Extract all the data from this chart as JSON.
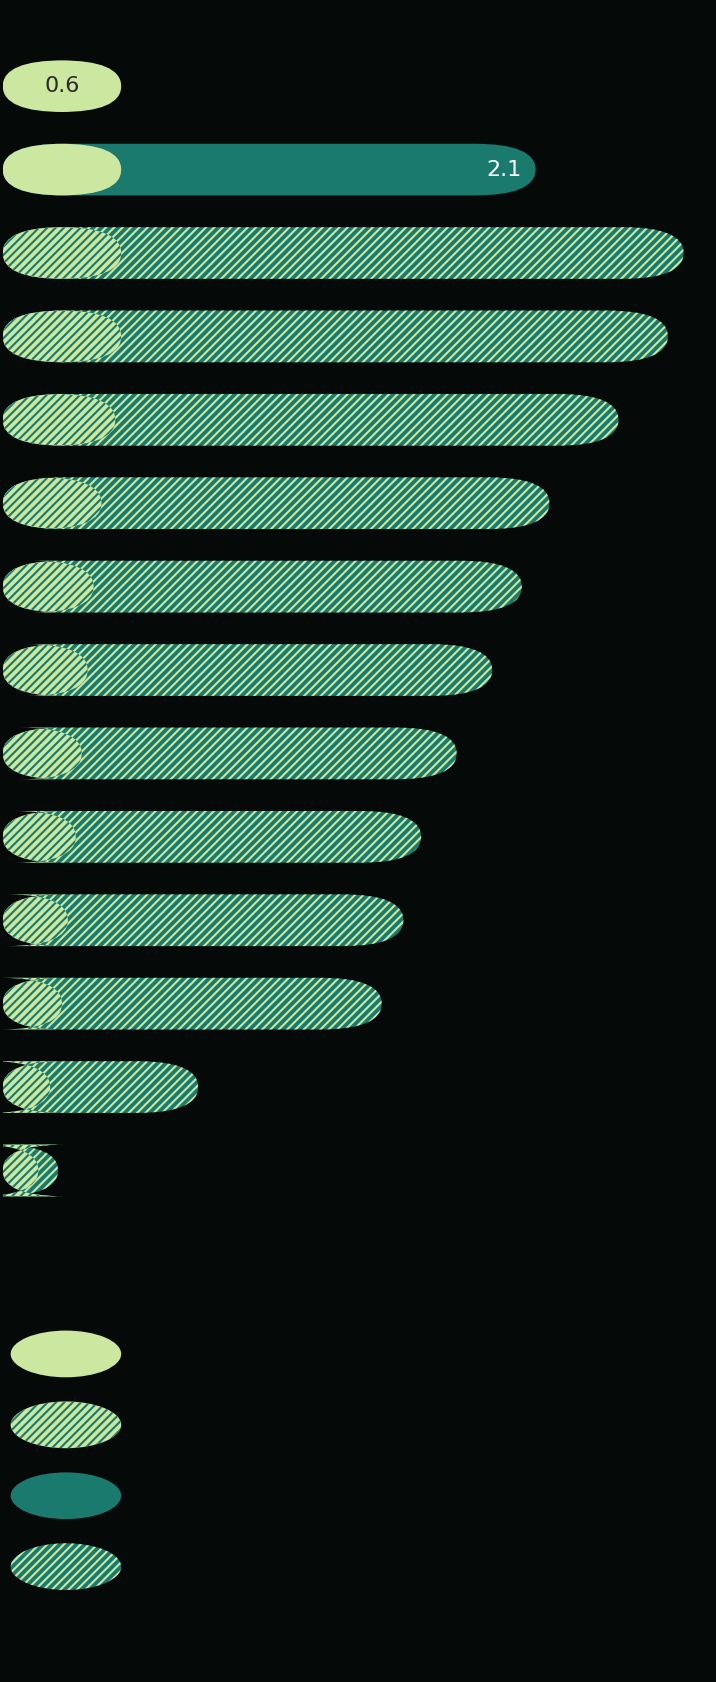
{
  "background_color": "#050a09",
  "light_green": "#cce8a0",
  "teal": "#1a7a6e",
  "bar_height": 0.62,
  "top_bars": [
    {
      "light_val": 0.6,
      "teal_val": 0.0
    },
    {
      "light_val": 0.6,
      "teal_val": 2.1
    }
  ],
  "hatched_bars": [
    {
      "light_val": 0.6,
      "teal_val": 2.85
    },
    {
      "light_val": 0.6,
      "teal_val": 2.77
    },
    {
      "light_val": 0.57,
      "teal_val": 2.55
    },
    {
      "light_val": 0.5,
      "teal_val": 2.27
    },
    {
      "light_val": 0.46,
      "teal_val": 2.17
    },
    {
      "light_val": 0.43,
      "teal_val": 2.05
    },
    {
      "light_val": 0.4,
      "teal_val": 1.9
    },
    {
      "light_val": 0.37,
      "teal_val": 1.75
    },
    {
      "light_val": 0.33,
      "teal_val": 1.7
    },
    {
      "light_val": 0.3,
      "teal_val": 1.62
    },
    {
      "light_val": 0.24,
      "teal_val": 0.75
    },
    {
      "light_val": 0.18,
      "teal_val": 0.1
    }
  ],
  "label_0_6": "0.6",
  "label_2_1": "2.1",
  "xlim_max": 3.6,
  "legend_items": [
    {
      "color": "#cce8a0",
      "hatch": null
    },
    {
      "color": "#cce8a0",
      "hatch": "////"
    },
    {
      "color": "#1a7a6e",
      "hatch": null
    },
    {
      "color": "#1a7a6e",
      "hatch": "////"
    }
  ],
  "legend_ec_hatched_light": "#1a7a6e",
  "legend_ec_hatched_teal": "#cce8a0"
}
